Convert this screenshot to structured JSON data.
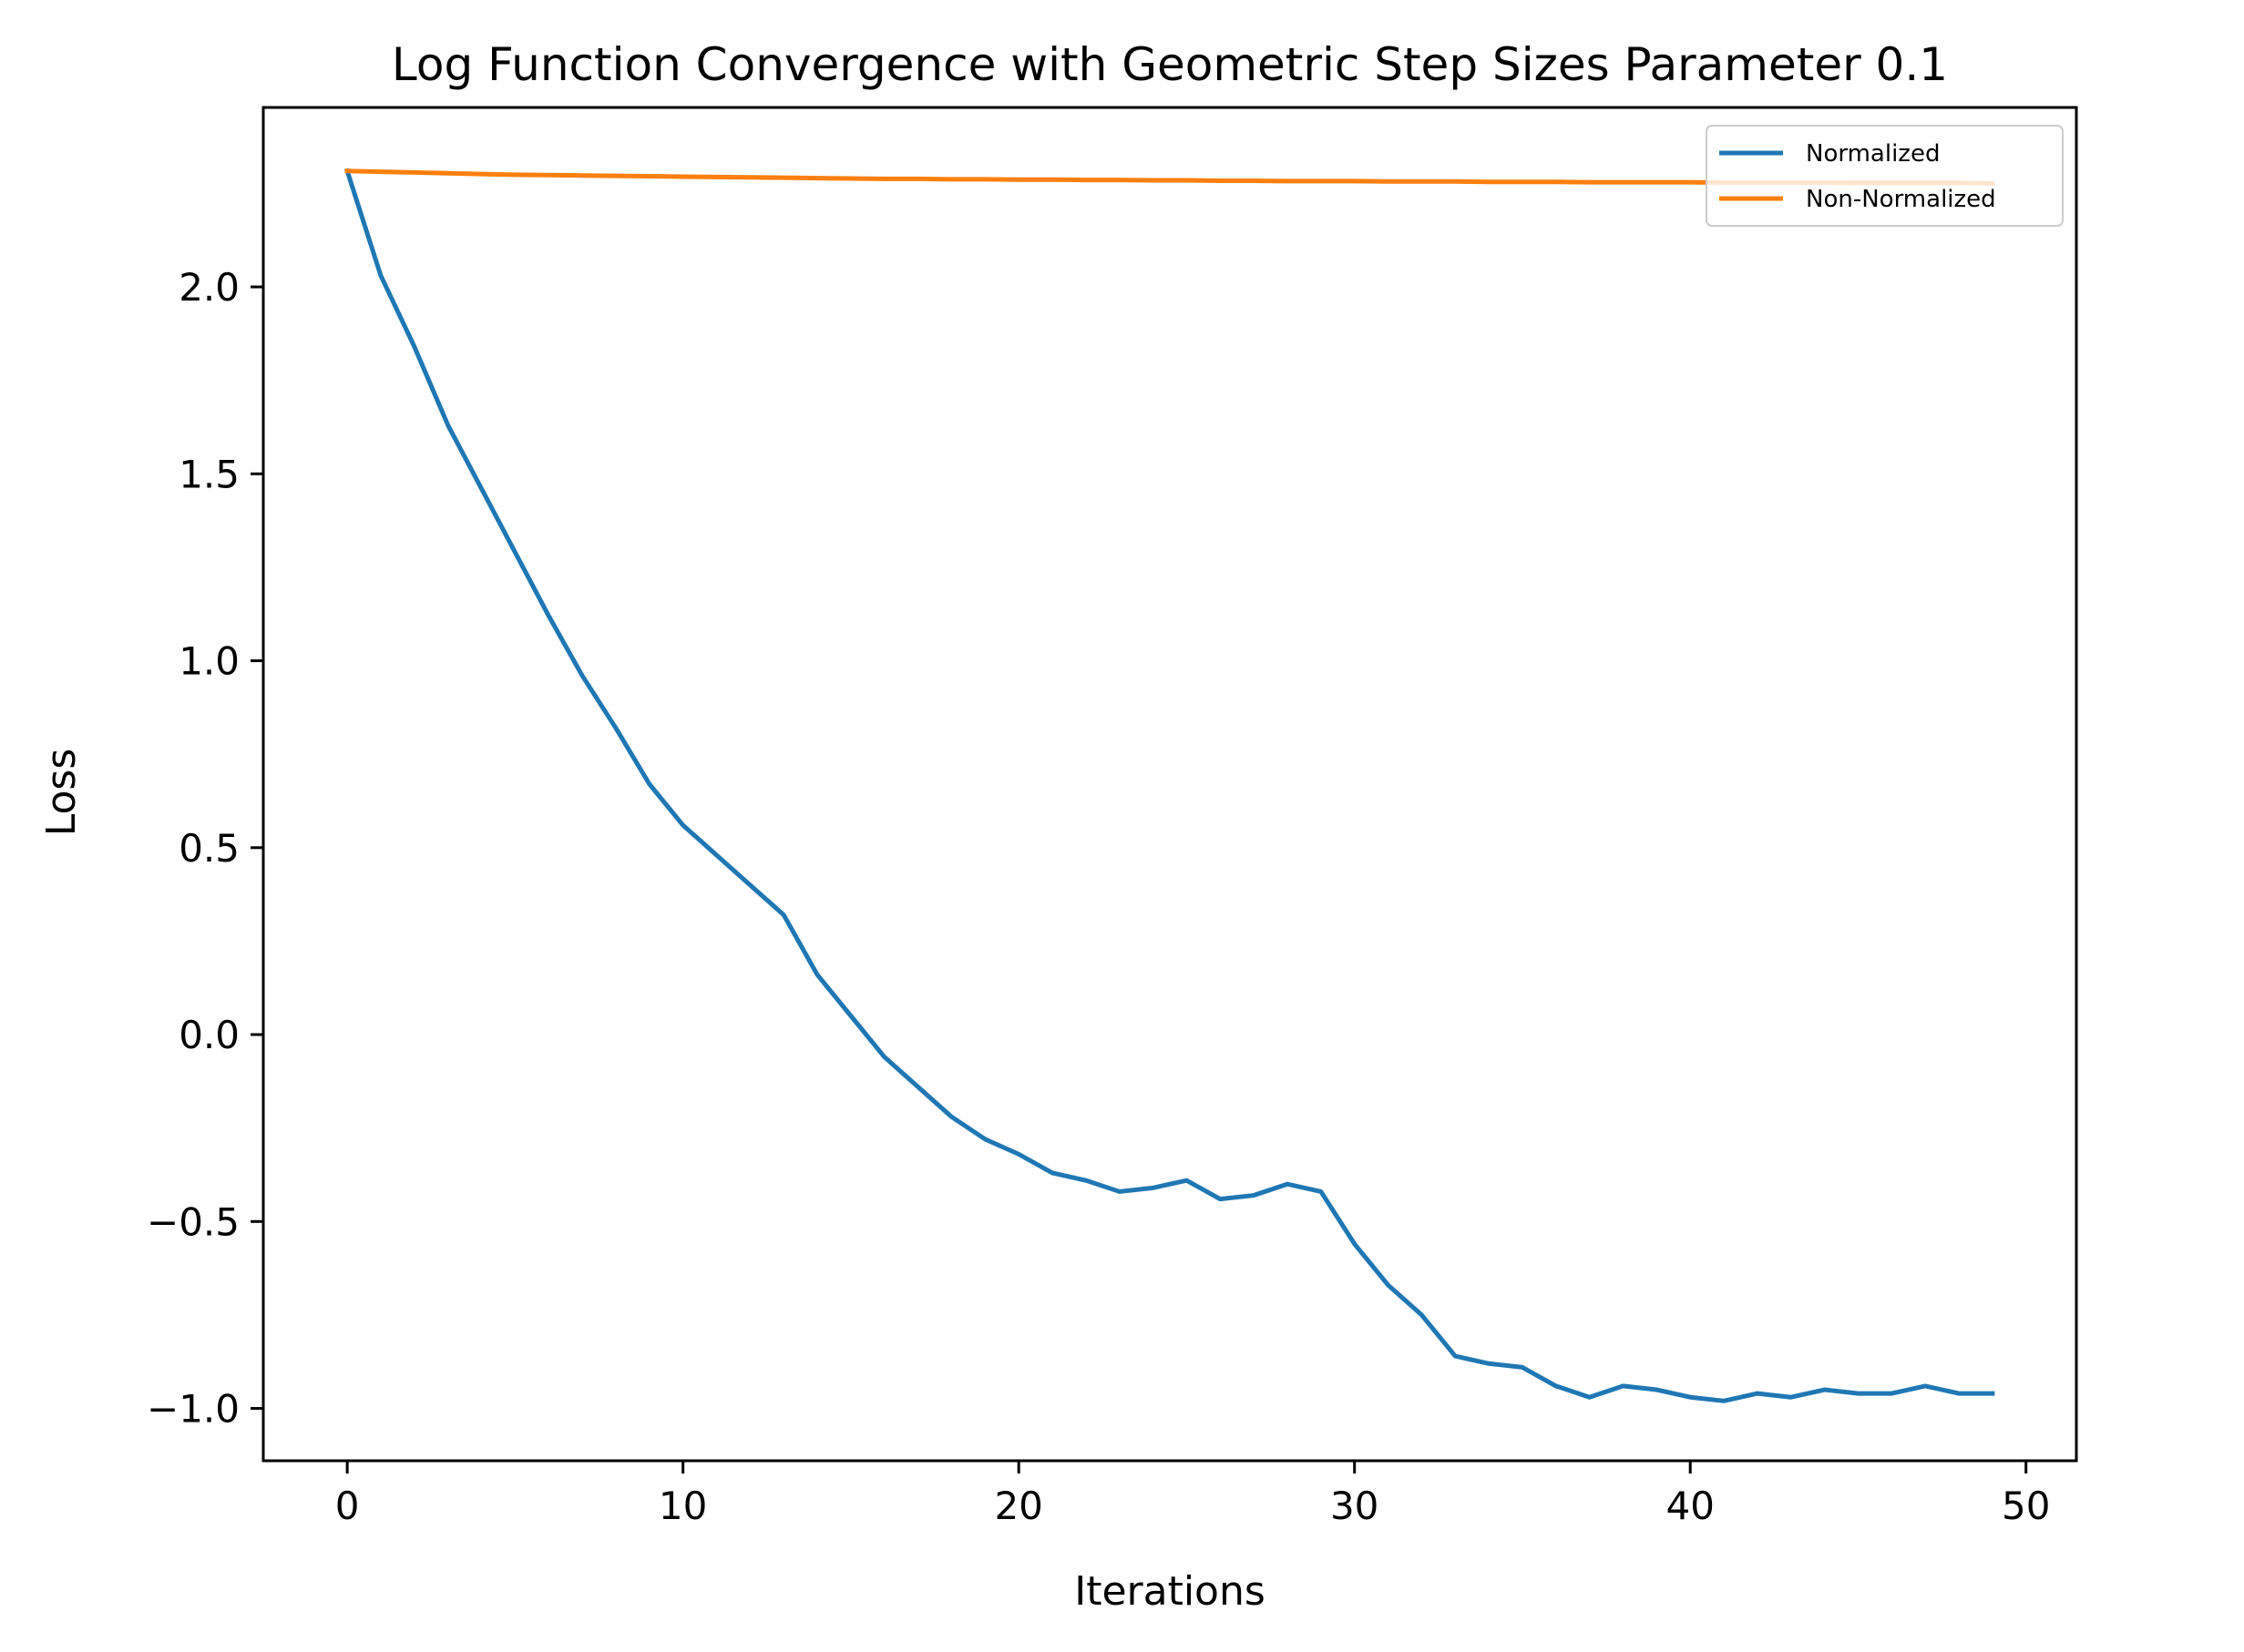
{
  "chart_data": {
    "type": "line",
    "title": "Log Function Convergence with Geometric Step Sizes Parameter 0.1",
    "xlabel": "Iterations",
    "ylabel": "Loss",
    "xlim": [
      -2.5,
      51.5
    ],
    "ylim": [
      -1.14,
      2.48
    ],
    "xticks": [
      0,
      10,
      20,
      30,
      40,
      50
    ],
    "xtick_labels": [
      "0",
      "10",
      "20",
      "30",
      "40",
      "50"
    ],
    "yticks": [
      -1.0,
      -0.5,
      0.0,
      0.5,
      1.0,
      1.5,
      2.0
    ],
    "ytick_labels": [
      "−1.0",
      "−0.5",
      "0.0",
      "0.5",
      "1.0",
      "1.5",
      "2.0"
    ],
    "grid": false,
    "legend_position": "top-right",
    "x": [
      0,
      1,
      2,
      3,
      4,
      5,
      6,
      7,
      8,
      9,
      10,
      11,
      12,
      13,
      14,
      15,
      16,
      17,
      18,
      19,
      20,
      21,
      22,
      23,
      24,
      25,
      26,
      27,
      28,
      29,
      30,
      31,
      32,
      33,
      34,
      35,
      36,
      37,
      38,
      39,
      40,
      41,
      42,
      43,
      44,
      45,
      46,
      47,
      48,
      49
    ],
    "series": [
      {
        "name": "Normalized",
        "color": "#1f77b4",
        "values": [
          2.31,
          2.03,
          1.84,
          1.63,
          1.46,
          1.29,
          1.12,
          0.96,
          0.82,
          0.67,
          0.56,
          0.48,
          0.4,
          0.32,
          0.16,
          0.05,
          -0.06,
          -0.14,
          -0.22,
          -0.28,
          -0.32,
          -0.37,
          -0.39,
          -0.42,
          -0.41,
          -0.39,
          -0.44,
          -0.43,
          -0.4,
          -0.42,
          -0.56,
          -0.67,
          -0.75,
          -0.86,
          -0.88,
          -0.89,
          -0.94,
          -0.97,
          -0.94,
          -0.95,
          -0.97,
          -0.98,
          -0.96,
          -0.97,
          -0.95,
          -0.96,
          -0.96,
          -0.94,
          -0.96,
          -0.96
        ]
      },
      {
        "name": "Non-Normalized",
        "color": "#ff7f0e",
        "values": [
          2.31,
          2.308,
          2.306,
          2.304,
          2.302,
          2.3,
          2.299,
          2.298,
          2.297,
          2.296,
          2.295,
          2.294,
          2.293,
          2.292,
          2.291,
          2.29,
          2.289,
          2.289,
          2.288,
          2.288,
          2.287,
          2.287,
          2.286,
          2.286,
          2.285,
          2.285,
          2.284,
          2.284,
          2.283,
          2.283,
          2.283,
          2.282,
          2.282,
          2.282,
          2.281,
          2.281,
          2.281,
          2.28,
          2.28,
          2.28,
          2.28,
          2.279,
          2.279,
          2.279,
          2.279,
          2.278,
          2.278,
          2.278,
          2.278,
          2.277
        ]
      }
    ]
  }
}
